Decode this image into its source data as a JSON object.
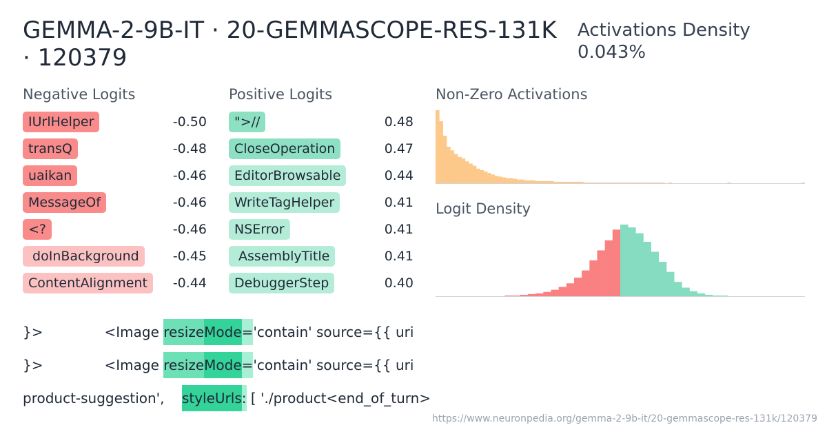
{
  "header": {
    "title": "GEMMA-2-9B-IT · 20-GEMMASCOPE-RES-131K · 120379",
    "density_label": "Activations Density",
    "density_value": "0.043%"
  },
  "negative_logits": {
    "label": "Negative Logits",
    "items": [
      {
        "token": "IUrlHelper",
        "value": "-0.50",
        "color": "#f98b8b"
      },
      {
        "token": "transQ",
        "value": "-0.48",
        "color": "#f98b8b"
      },
      {
        "token": "uaikan",
        "value": "-0.46",
        "color": "#f98b8b"
      },
      {
        "token": "MessageOf",
        "value": "-0.46",
        "color": "#f98b8b"
      },
      {
        "token": "<?",
        "value": "-0.46",
        "color": "#f98b8b"
      },
      {
        "token": " doInBackground",
        "value": "-0.45",
        "color": "#fcc2c2"
      },
      {
        "token": "ContentAlignment",
        "value": "-0.44",
        "color": "#fcc2c2"
      }
    ]
  },
  "positive_logits": {
    "label": "Positive Logits",
    "items": [
      {
        "token": "\">//",
        "value": "0.48",
        "color": "#8ee0c3"
      },
      {
        "token": "CloseOperation",
        "value": "0.47",
        "color": "#8ee0c3"
      },
      {
        "token": "EditorBrowsable",
        "value": "0.44",
        "color": "#b5ecd8"
      },
      {
        "token": "WriteTagHelper",
        "value": "0.41",
        "color": "#b5ecd8"
      },
      {
        "token": "NSError",
        "value": "0.41",
        "color": "#b5ecd8"
      },
      {
        "token": " AssemblyTitle",
        "value": "0.41",
        "color": "#b5ecd8"
      },
      {
        "token": "DebuggerStep",
        "value": "0.40",
        "color": "#b5ecd8"
      }
    ]
  },
  "chart_data": [
    {
      "type": "bar",
      "title": "Non-Zero Activations",
      "color": "#fcc98a",
      "values": [
        100,
        85,
        65,
        50,
        45,
        40,
        36,
        34,
        30,
        27,
        24,
        20,
        18,
        16,
        14,
        12,
        10,
        9,
        8,
        7,
        7,
        6,
        5,
        5,
        4,
        4,
        4,
        3,
        3,
        3,
        3,
        3,
        2,
        2,
        2,
        2,
        2,
        2,
        2,
        2,
        1,
        1,
        1,
        1,
        1,
        1,
        1,
        1,
        1,
        1,
        1,
        1,
        1,
        1,
        1,
        1,
        1,
        1,
        1,
        1,
        1,
        1,
        0,
        1,
        0,
        0,
        0,
        0,
        0,
        0,
        0,
        0,
        0,
        0,
        0,
        0,
        0,
        0,
        0,
        1,
        0,
        0,
        0,
        0,
        0,
        0,
        0,
        0,
        0,
        0,
        0,
        0,
        0,
        0,
        0,
        0,
        0,
        0,
        0,
        1
      ]
    },
    {
      "type": "bar",
      "title": "Logit Density",
      "negative_color": "#f98181",
      "positive_color": "#86dcc0",
      "split_index": 24,
      "values": [
        0,
        0,
        0,
        0,
        0,
        0,
        0,
        0,
        0,
        1,
        1,
        2,
        3,
        4,
        6,
        9,
        13,
        18,
        26,
        36,
        50,
        64,
        78,
        93,
        100,
        96,
        88,
        76,
        62,
        48,
        34,
        20,
        12,
        7,
        4,
        2,
        1,
        1,
        0,
        0,
        0,
        0,
        0,
        0,
        0,
        0,
        0,
        0
      ]
    }
  ],
  "examples": [
    [
      {
        "text": "}>              <Image ",
        "color": ""
      },
      {
        "text": "resize",
        "color": "#6ee0b6"
      },
      {
        "text": "Mode",
        "color": "#34d399"
      },
      {
        "text": "=",
        "color": "#a7f0d5"
      },
      {
        "text": "'contain' source={{ uri",
        "color": ""
      }
    ],
    [
      {
        "text": "}>              <Image ",
        "color": ""
      },
      {
        "text": "resize",
        "color": "#6ee0b6"
      },
      {
        "text": "Mode",
        "color": "#34d399"
      },
      {
        "text": "=",
        "color": "#a7f0d5"
      },
      {
        "text": "'contain' source={{ uri",
        "color": ""
      }
    ],
    [
      {
        "text": "product-suggestion',    ",
        "color": ""
      },
      {
        "text": "styleUrls",
        "color": "#34d399"
      },
      {
        "text": ":",
        "color": "#a7f0d5"
      },
      {
        "text": " [ './product<end_of_turn>",
        "color": ""
      }
    ]
  ],
  "footer": {
    "url": "https://www.neuronpedia.org/gemma-2-9b-it/20-gemmascope-res-131k/120379"
  }
}
